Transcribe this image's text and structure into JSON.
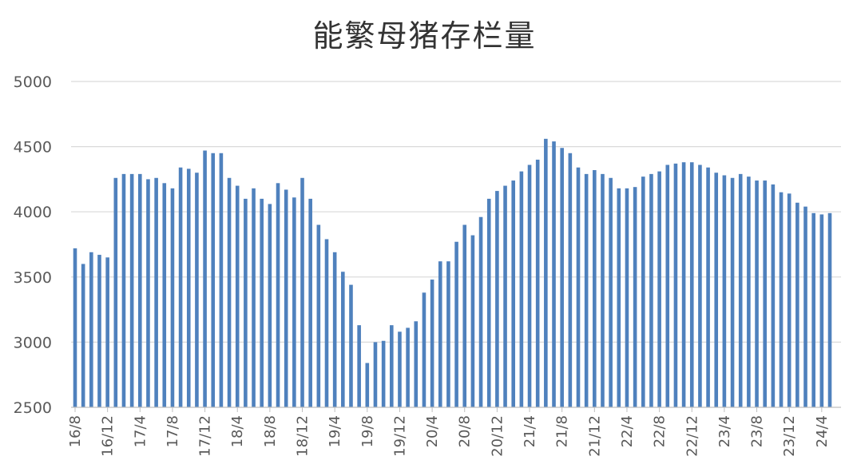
{
  "chart_data": {
    "type": "bar",
    "title": "能繁母猪存栏量",
    "xlabel": "",
    "ylabel": "",
    "ylim": [
      2500,
      5000
    ],
    "yticks": [
      2500,
      3000,
      3500,
      4000,
      4500,
      5000
    ],
    "grid": true,
    "legend": "none",
    "bar_color": "#4F81BD",
    "grid_color": "#D9D9D9",
    "categories": [
      "16/8",
      "16/9",
      "16/10",
      "16/11",
      "16/12",
      "17/1",
      "17/2",
      "17/3",
      "17/4",
      "17/5",
      "17/6",
      "17/7",
      "17/8",
      "17/9",
      "17/10",
      "17/11",
      "17/12",
      "18/1",
      "18/2",
      "18/3",
      "18/4",
      "18/5",
      "18/6",
      "18/7",
      "18/8",
      "18/9",
      "18/10",
      "18/11",
      "18/12",
      "19/1",
      "19/2",
      "19/3",
      "19/4",
      "19/5",
      "19/6",
      "19/7",
      "19/8",
      "19/9",
      "19/10",
      "19/11",
      "19/12",
      "20/1",
      "20/2",
      "20/3",
      "20/4",
      "20/5",
      "20/6",
      "20/7",
      "20/8",
      "20/9",
      "20/10",
      "20/11",
      "20/12",
      "21/1",
      "21/2",
      "21/3",
      "21/4",
      "21/5",
      "21/6",
      "21/7",
      "21/8",
      "21/9",
      "21/10",
      "21/11",
      "21/12",
      "22/1",
      "22/2",
      "22/3",
      "22/4",
      "22/5",
      "22/6",
      "22/7",
      "22/8",
      "22/9",
      "22/10",
      "22/11",
      "22/12",
      "23/1",
      "23/2",
      "23/3",
      "23/4",
      "23/5",
      "23/6",
      "23/7",
      "23/8",
      "23/9",
      "23/10",
      "23/11",
      "23/12",
      "24/1",
      "24/2",
      "24/3",
      "24/4",
      "24/5"
    ],
    "values": [
      3720,
      3600,
      3690,
      3670,
      3650,
      4260,
      4290,
      4290,
      4290,
      4250,
      4260,
      4220,
      4180,
      4340,
      4330,
      4300,
      4470,
      4450,
      4450,
      4260,
      4200,
      4100,
      4180,
      4100,
      4060,
      4220,
      4170,
      4110,
      4260,
      4100,
      3900,
      3790,
      3690,
      3540,
      3440,
      3130,
      2840,
      3000,
      3010,
      3130,
      3080,
      3110,
      3160,
      3380,
      3480,
      3620,
      3620,
      3770,
      3900,
      3820,
      3960,
      4100,
      4160,
      4200,
      4240,
      4310,
      4360,
      4400,
      4560,
      4540,
      4490,
      4450,
      4340,
      4290,
      4320,
      4290,
      4260,
      4180,
      4180,
      4190,
      4270,
      4290,
      4310,
      4360,
      4370,
      4380,
      4380,
      4360,
      4340,
      4300,
      4280,
      4260,
      4290,
      4270,
      4240,
      4240,
      4210,
      4150,
      4140,
      4070,
      4040,
      3990,
      3980,
      3990
    ],
    "xtick_labels": [
      "16/8",
      "16/12",
      "17/4",
      "17/8",
      "17/12",
      "18/4",
      "18/8",
      "18/12",
      "19/4",
      "19/8",
      "19/12",
      "20/4",
      "20/8",
      "20/12",
      "21/4",
      "21/8",
      "21/12",
      "22/4",
      "22/8",
      "22/12",
      "23/4",
      "23/8",
      "23/12",
      "24/4"
    ]
  }
}
